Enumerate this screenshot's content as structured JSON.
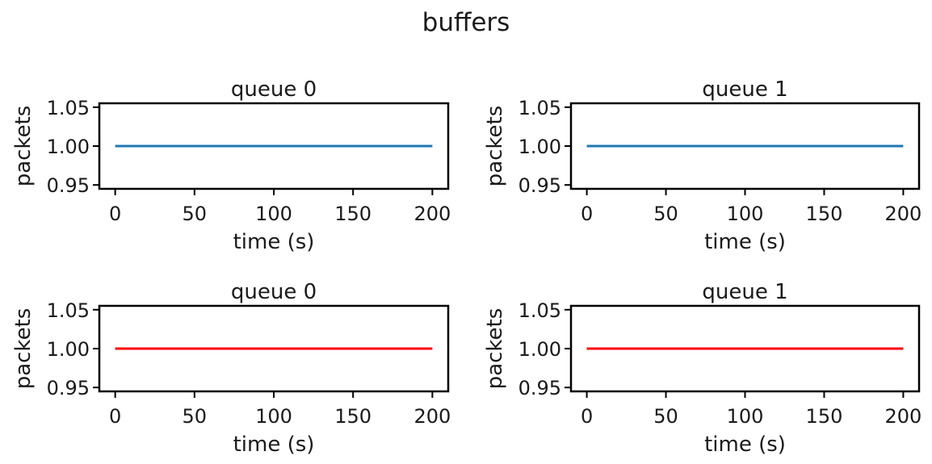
{
  "figure": {
    "title": "buffers"
  },
  "chart_data": [
    {
      "type": "line",
      "title": "queue 0",
      "xlabel": "time (s)",
      "ylabel": "packets",
      "xlim": [
        -10,
        210
      ],
      "ylim": [
        0.945,
        1.055
      ],
      "xticks": [
        0,
        50,
        100,
        150,
        200
      ],
      "xtick_labels": [
        "0",
        "50",
        "100",
        "150",
        "200"
      ],
      "yticks": [
        0.95,
        1.0,
        1.05
      ],
      "ytick_labels": [
        "0.95",
        "1.00",
        "1.05"
      ],
      "grid": false,
      "series": [
        {
          "color": "#1f77b4",
          "x": [
            0,
            200
          ],
          "y": [
            1.0,
            1.0
          ]
        }
      ]
    },
    {
      "type": "line",
      "title": "queue 1",
      "xlabel": "time (s)",
      "ylabel": "packets",
      "xlim": [
        -10,
        210
      ],
      "ylim": [
        0.945,
        1.055
      ],
      "xticks": [
        0,
        50,
        100,
        150,
        200
      ],
      "xtick_labels": [
        "0",
        "50",
        "100",
        "150",
        "200"
      ],
      "yticks": [
        0.95,
        1.0,
        1.05
      ],
      "ytick_labels": [
        "0.95",
        "1.00",
        "1.05"
      ],
      "grid": false,
      "series": [
        {
          "color": "#1f77b4",
          "x": [
            0,
            200
          ],
          "y": [
            1.0,
            1.0
          ]
        }
      ]
    },
    {
      "type": "line",
      "title": "queue 0",
      "xlabel": "time (s)",
      "ylabel": "packets",
      "xlim": [
        -10,
        210
      ],
      "ylim": [
        0.945,
        1.055
      ],
      "xticks": [
        0,
        50,
        100,
        150,
        200
      ],
      "xtick_labels": [
        "0",
        "50",
        "100",
        "150",
        "200"
      ],
      "yticks": [
        0.95,
        1.0,
        1.05
      ],
      "ytick_labels": [
        "0.95",
        "1.00",
        "1.05"
      ],
      "grid": false,
      "series": [
        {
          "color": "#ff0000",
          "x": [
            0,
            200
          ],
          "y": [
            1.0,
            1.0
          ]
        }
      ]
    },
    {
      "type": "line",
      "title": "queue 1",
      "xlabel": "time (s)",
      "ylabel": "packets",
      "xlim": [
        -10,
        210
      ],
      "ylim": [
        0.945,
        1.055
      ],
      "xticks": [
        0,
        50,
        100,
        150,
        200
      ],
      "xtick_labels": [
        "0",
        "50",
        "100",
        "150",
        "200"
      ],
      "yticks": [
        0.95,
        1.0,
        1.05
      ],
      "ytick_labels": [
        "0.95",
        "1.00",
        "1.05"
      ],
      "grid": false,
      "series": [
        {
          "color": "#ff0000",
          "x": [
            0,
            200
          ],
          "y": [
            1.0,
            1.0
          ]
        }
      ]
    }
  ]
}
